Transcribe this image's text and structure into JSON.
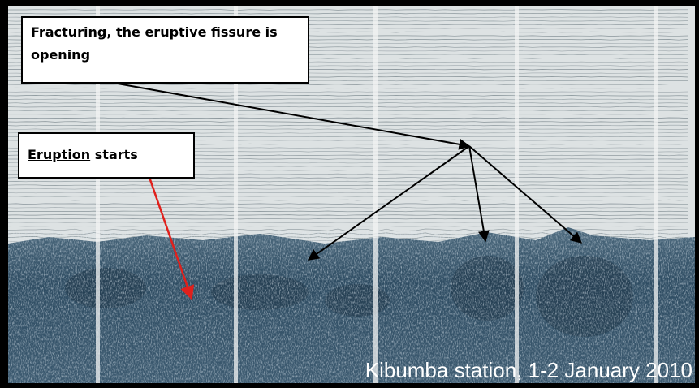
{
  "annotations": {
    "fracturing": "Fracturing, the eruptive fissure is opening",
    "eruption_keyword": "Eruption",
    "eruption_rest": "starts"
  },
  "caption": "Kibumba station, 1-2 January 2010"
}
